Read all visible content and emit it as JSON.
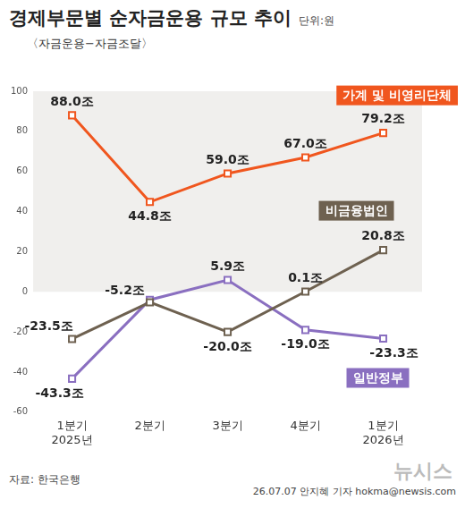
{
  "chart_data": {
    "type": "line",
    "title": "경제부문별 순자금운용 규모 추이",
    "unit": "단위:원",
    "subtitle": "〈자금운용−자금조달〉",
    "categories": [
      [
        "1분기",
        "2025년"
      ],
      "2분기",
      "3분기",
      "4분기",
      [
        "1분기",
        "2026년"
      ]
    ],
    "series": [
      {
        "name": "가계 및 비영리단체",
        "color": "#f0561e",
        "values": [
          88.0,
          44.8,
          59.0,
          67.0,
          79.2
        ],
        "value_labels": [
          "88.0조",
          "44.8조",
          "59.0조",
          "67.0조",
          "79.2조"
        ]
      },
      {
        "name": "비금융법인",
        "color": "#6e6150",
        "values": [
          -23.5,
          -5.2,
          -20.0,
          0.1,
          20.8
        ],
        "value_labels": [
          "-23.5조",
          "-5.2조",
          "-20.0조",
          "0.1조",
          "20.8조"
        ]
      },
      {
        "name": "일반정부",
        "color": "#8a6fc0",
        "values": [
          -43.3,
          -4.0,
          5.9,
          -19.0,
          -23.3
        ],
        "value_labels": [
          "-43.3조",
          null,
          "5.9조",
          "-19.0조",
          "-23.3조"
        ]
      }
    ],
    "ylim": [
      -60,
      100
    ],
    "yticks": [
      -60,
      -40,
      -20,
      0,
      20,
      40,
      60,
      80,
      100
    ],
    "grid": false,
    "data_labels": true,
    "marker": "square",
    "source": "자료: 한국은행",
    "credit": "26.07.07 안지혜 기자 hokma@newsis.com",
    "watermark": "뉴시스"
  }
}
